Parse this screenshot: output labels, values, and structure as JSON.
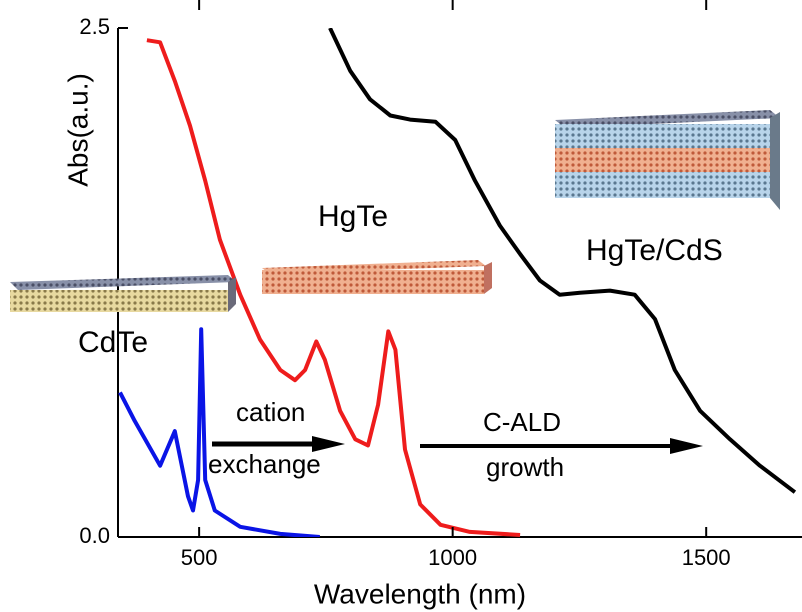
{
  "chart_data": {
    "type": "line",
    "xlabel": "Wavelength (nm)",
    "ylabel": "Abs(a.u.)",
    "xlim": [
      340,
      1685
    ],
    "ylim": [
      0,
      2.5
    ],
    "xticks": [
      500,
      1000,
      1500
    ],
    "yticks": [
      {
        "value": 0,
        "label": "0.0"
      },
      2.5
    ],
    "series": [
      {
        "name": "CdTe",
        "color": "#0a14e6",
        "x": [
          344,
          373,
          423,
          452,
          478,
          488,
          498,
          504,
          512,
          531,
          581,
          660,
          738
        ],
        "values": [
          0.71,
          0.57,
          0.35,
          0.52,
          0.2,
          0.13,
          0.28,
          1.02,
          0.28,
          0.13,
          0.05,
          0.015,
          0
        ]
      },
      {
        "name": "HgTe",
        "color": "#ee1c1c",
        "x": [
          397,
          423,
          452,
          482,
          512,
          541,
          581,
          620,
          660,
          689,
          709,
          731,
          748,
          778,
          808,
          833,
          853,
          873,
          887,
          906,
          936,
          976,
          1034,
          1133
        ],
        "values": [
          2.44,
          2.43,
          2.24,
          2.02,
          1.75,
          1.46,
          1.19,
          0.97,
          0.82,
          0.77,
          0.82,
          0.96,
          0.87,
          0.62,
          0.48,
          0.45,
          0.65,
          1.01,
          0.92,
          0.43,
          0.16,
          0.06,
          0.025,
          0.01
        ]
      },
      {
        "name": "HgTe/CdS",
        "color": "#000000",
        "x": [
          758,
          798,
          837,
          877,
          916,
          966,
          1005,
          1044,
          1093,
          1133,
          1172,
          1211,
          1251,
          1310,
          1359,
          1399,
          1438,
          1488,
          1547,
          1606,
          1675
        ],
        "values": [
          2.5,
          2.29,
          2.15,
          2.07,
          2.05,
          2.04,
          1.95,
          1.75,
          1.53,
          1.39,
          1.26,
          1.19,
          1.2,
          1.21,
          1.19,
          1.07,
          0.82,
          0.62,
          0.48,
          0.35,
          0.22
        ]
      }
    ],
    "annotations": [
      "cation",
      "exchange",
      "C-ALD",
      "growth"
    ]
  }
}
